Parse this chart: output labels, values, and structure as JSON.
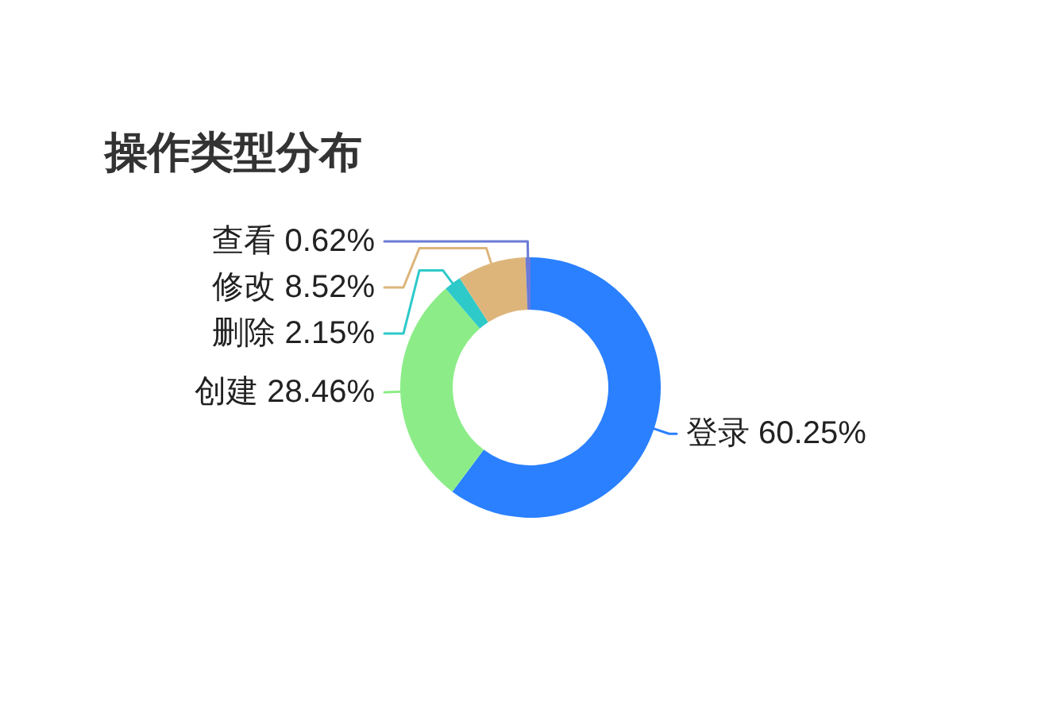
{
  "chart_data": {
    "type": "donut",
    "title": "操作类型分布",
    "categories": [
      "登录",
      "创建",
      "删除",
      "修改",
      "查看"
    ],
    "values": [
      60.25,
      28.46,
      2.15,
      8.52,
      0.62
    ],
    "value_labels": [
      "60.25%",
      "28.46%",
      "2.15%",
      "8.52%",
      "0.62%"
    ],
    "colors": [
      "#2a80ff",
      "#8ced88",
      "#2ec9c9",
      "#ddb57b",
      "#6a7ad6"
    ]
  }
}
